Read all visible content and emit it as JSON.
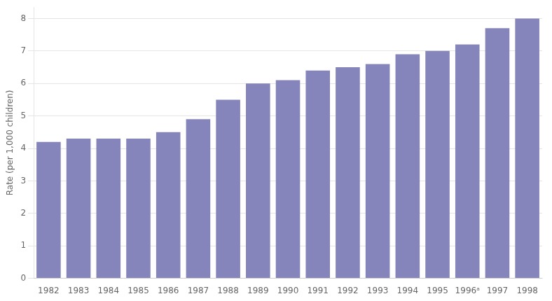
{
  "chart_data": {
    "type": "bar",
    "ylabel": "Rate (per 1,000 children)",
    "categories": [
      "1982",
      "1983",
      "1984",
      "1985",
      "1986",
      "1987",
      "1988",
      "1989",
      "1990",
      "1991",
      "1992",
      "1993",
      "1994",
      "1995",
      "1996ᵃ",
      "1997",
      "1998"
    ],
    "values": [
      4.2,
      4.3,
      4.3,
      4.3,
      4.5,
      4.9,
      5.5,
      6.0,
      6.1,
      6.4,
      6.5,
      6.6,
      6.9,
      7.0,
      7.2,
      7.7,
      8.0
    ],
    "color": "#8585bb",
    "ylim": [
      0,
      8.35
    ],
    "yticks": [
      0,
      1,
      2,
      3,
      4,
      5,
      6,
      7,
      8
    ],
    "grid": true
  }
}
